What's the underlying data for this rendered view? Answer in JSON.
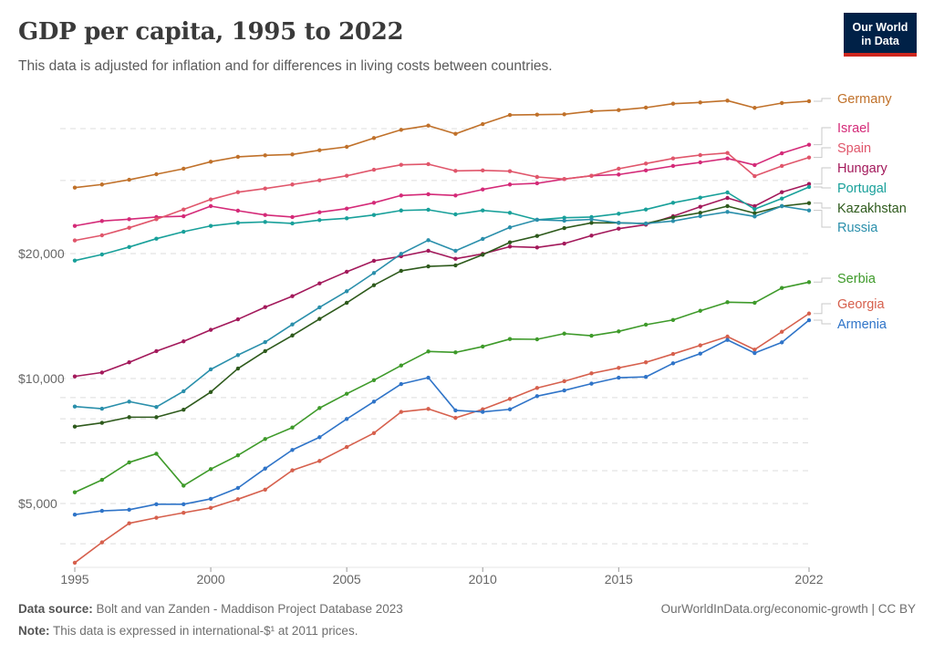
{
  "header": {
    "title": "GDP per capita, 1995 to 2022",
    "subtitle": "This data is adjusted for inflation and for differences in living costs between countries.",
    "logo_text": "Our World in Data",
    "logo_colors": {
      "background": "#002147",
      "stripe": "#ce261e"
    }
  },
  "footer": {
    "source_label": "Data source:",
    "source_text": "Bolt and van Zanden - Maddison Project Database 2023",
    "note_label": "Note:",
    "note_text": "This data is expressed in international-$¹ at 2011 prices.",
    "link": "OurWorldInData.org/economic-growth | CC BY"
  },
  "chart_data": {
    "type": "line",
    "title": "GDP per capita, 1995 to 2022",
    "xlabel": "",
    "ylabel": "",
    "y_scale": "log",
    "xlim": [
      1995,
      2022
    ],
    "ylim": [
      3500,
      50000
    ],
    "grid": true,
    "legend": "right (line-end labels)",
    "x_ticks": [
      "1995",
      "2000",
      "2005",
      "2010",
      "2015",
      "2022"
    ],
    "x_tick_values": [
      1995,
      2000,
      2005,
      2010,
      2015,
      2022
    ],
    "y_ticks": [
      {
        "value": 20000,
        "label": "$20,000"
      },
      {
        "value": 10000,
        "label": "$10,000"
      },
      {
        "value": 5000,
        "label": "$5,000"
      }
    ],
    "y_gridlines": [
      4000,
      5000,
      6000,
      7000,
      8000,
      9000,
      10000,
      20000,
      30000,
      40000
    ],
    "x": [
      1995,
      1996,
      1997,
      1998,
      1999,
      2000,
      2001,
      2002,
      2003,
      2004,
      2005,
      2006,
      2007,
      2008,
      2009,
      2010,
      2011,
      2012,
      2013,
      2014,
      2015,
      2016,
      2017,
      2018,
      2019,
      2020,
      2021,
      2022
    ],
    "series": [
      {
        "name": "Germany",
        "color": "#c0712a",
        "values": [
          28830,
          29340,
          30120,
          31060,
          32020,
          33290,
          34200,
          34490,
          34660,
          35480,
          36150,
          37960,
          39740,
          40670,
          38860,
          41020,
          43140,
          43220,
          43310,
          44040,
          44320,
          44940,
          45920,
          46250,
          46720,
          44880,
          46090,
          46560
        ]
      },
      {
        "name": "Israel",
        "color": "#d42a78",
        "values": [
          23320,
          23960,
          24200,
          24490,
          24600,
          26020,
          25370,
          24770,
          24490,
          25150,
          25670,
          26510,
          27610,
          27790,
          27610,
          28540,
          29340,
          29530,
          30230,
          30790,
          31000,
          31730,
          32510,
          33170,
          33900,
          32680,
          34890,
          36580
        ]
      },
      {
        "name": "Spain",
        "color": "#e0566b",
        "values": [
          21510,
          22130,
          23080,
          24200,
          25540,
          27000,
          28110,
          28690,
          29340,
          30020,
          30790,
          31850,
          32720,
          32840,
          31640,
          31730,
          31580,
          30590,
          30230,
          30790,
          32020,
          32950,
          33900,
          34540,
          34940,
          30740,
          32510,
          34080
        ]
      },
      {
        "name": "Hungary",
        "color": "#a3195b",
        "values": [
          10120,
          10340,
          10940,
          11640,
          12290,
          13100,
          13890,
          14860,
          15790,
          16950,
          18080,
          19210,
          19700,
          20310,
          19430,
          19970,
          20790,
          20690,
          21140,
          22100,
          22960,
          23480,
          24610,
          25930,
          27230,
          26020,
          28110,
          29420
        ]
      },
      {
        "name": "Portugal",
        "color": "#18a09a",
        "values": [
          19240,
          19900,
          20740,
          21720,
          22580,
          23320,
          23720,
          23840,
          23640,
          24080,
          24320,
          24770,
          25400,
          25500,
          24860,
          25410,
          25080,
          24120,
          24400,
          24490,
          24950,
          25540,
          26510,
          27270,
          28070,
          25590,
          27140,
          28940
        ]
      },
      {
        "name": "Kazakhstan",
        "color": "#2e5a1c",
        "values": [
          7660,
          7820,
          8070,
          8070,
          8410,
          9280,
          10570,
          11640,
          12700,
          13920,
          15220,
          16780,
          18170,
          18630,
          18730,
          19870,
          21280,
          22050,
          23040,
          23720,
          23720,
          23630,
          24450,
          25080,
          26020,
          25020,
          26020,
          26460
        ]
      },
      {
        "name": "Russia",
        "color": "#2a8fab",
        "values": [
          8560,
          8460,
          8800,
          8540,
          9320,
          10520,
          11390,
          12240,
          13500,
          14840,
          16230,
          17960,
          19970,
          21540,
          20310,
          21690,
          23130,
          24120,
          24000,
          24180,
          23720,
          23630,
          23960,
          24610,
          25200,
          24570,
          26020,
          25410
        ]
      },
      {
        "name": "Serbia",
        "color": "#3e9a2a",
        "values": [
          5320,
          5700,
          6280,
          6590,
          5520,
          6050,
          6530,
          7150,
          7620,
          8490,
          9190,
          9910,
          10750,
          11620,
          11560,
          11940,
          12450,
          12430,
          12830,
          12680,
          12990,
          13480,
          13840,
          14560,
          15270,
          15220,
          16530,
          17070
        ]
      },
      {
        "name": "Georgia",
        "color": "#d6604d",
        "values": [
          3600,
          4030,
          4480,
          4620,
          4750,
          4880,
          5120,
          5400,
          6010,
          6330,
          6840,
          7390,
          8310,
          8450,
          8040,
          8430,
          8930,
          9490,
          9850,
          10290,
          10610,
          10940,
          11460,
          12020,
          12620,
          11740,
          12960,
          14340
        ]
      },
      {
        "name": "Armenia",
        "color": "#2f74c8",
        "values": [
          4700,
          4800,
          4830,
          4980,
          4980,
          5130,
          5450,
          6070,
          6730,
          7220,
          7990,
          8800,
          9700,
          10050,
          8380,
          8310,
          8430,
          9070,
          9360,
          9720,
          10050,
          10090,
          10880,
          11480,
          12390,
          11520,
          12220,
          13820
        ]
      }
    ]
  }
}
